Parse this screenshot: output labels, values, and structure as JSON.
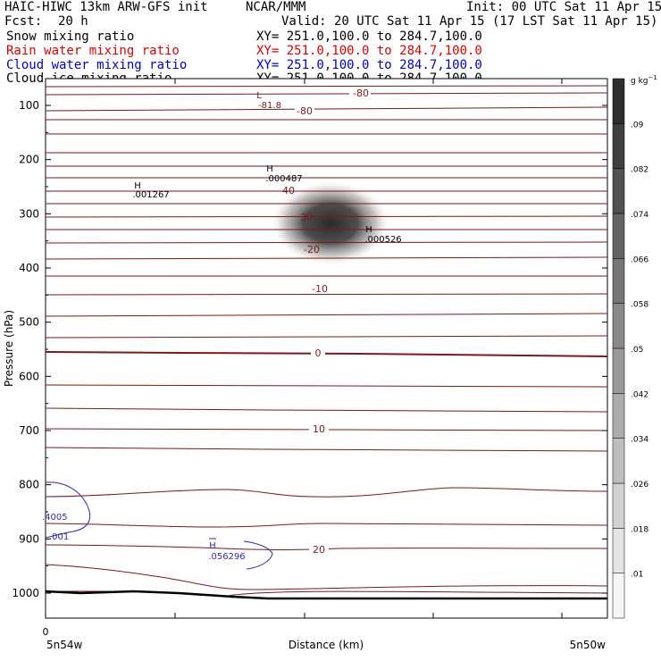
{
  "header": {
    "title_left": "HAIC-HIWC 13km ARW-GFS init",
    "title_center": "NCAR/MMM",
    "init": "Init: 00 UTC Sat 11 Apr 15",
    "fcst_label": "Fcst:",
    "fcst_value": "20 h",
    "valid": "Valid: 20 UTC Sat 11 Apr 15 (17 LST Sat 11 Apr 15)",
    "fields": [
      {
        "name": "Snow mixing ratio",
        "xy": "XY= 251.0,100.0 to 284.7,100.0",
        "color": "#000000"
      },
      {
        "name": "Rain water mixing ratio",
        "xy": "XY= 251.0,100.0 to 284.7,100.0",
        "color": "#e00000"
      },
      {
        "name": "Cloud water mixing ratio",
        "xy": "XY= 251.0,100.0 to 284.7,100.0",
        "color": "#0000cc"
      },
      {
        "name": "Cloud ice mixing ratio",
        "xy": "XY= 251.0,100.0 to 284.7,100.0",
        "color": "#000000"
      }
    ]
  },
  "chart_data": {
    "type": "cross-section",
    "ylabel": "Pressure (hPa)",
    "xlabel": "Distance (km)",
    "y_ticks": [
      100,
      200,
      300,
      400,
      500,
      600,
      700,
      800,
      900,
      1000
    ],
    "x_tick_zero": "0",
    "x_left_label": "5n54w",
    "x_right_label": "5n50w",
    "colorbar_units": "g kg",
    "colorbar_units_sup": "−1",
    "colorbar_ticks": [
      ".01",
      ".018",
      ".026",
      ".034",
      ".042",
      ".05",
      ".058",
      ".066",
      ".074",
      ".082",
      ".09"
    ],
    "temperature_labels": [
      "-80",
      "-80",
      "-40",
      "30",
      "-20",
      "-10",
      "0",
      "10",
      "20"
    ],
    "extrema": [
      {
        "letter": "L",
        "value": "-81.8"
      },
      {
        "letter": "H",
        "value": ".001267"
      },
      {
        "letter": "H",
        "value": ".000487"
      },
      {
        "letter": "H",
        "value": ".000526"
      },
      {
        "letter": "H",
        "value": ".056296"
      }
    ],
    "cloud_water_labels": [
      ".4005",
      ".001"
    ],
    "colors": {
      "temperature": "#7a1a1a",
      "cloud_water": "#2b2bb0",
      "shading": "#333333"
    }
  }
}
